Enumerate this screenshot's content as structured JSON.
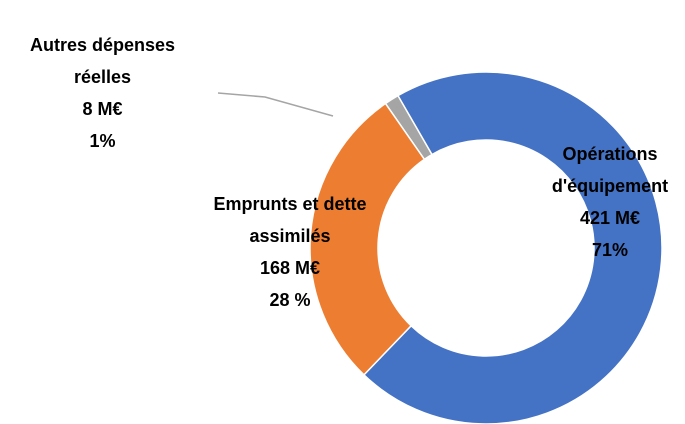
{
  "chart_data": {
    "type": "donut",
    "categories": [
      "Opérations d'équipement",
      "Emprunts et dette assimilés",
      "Autres dépenses réelles"
    ],
    "values": [
      421,
      168,
      8
    ],
    "value_labels": [
      "421 M€",
      "168 M€",
      "8 M€"
    ],
    "percents": [
      71,
      28,
      1
    ],
    "percent_labels": [
      "71%",
      "28 %",
      "1%"
    ],
    "colors": [
      "#4472c4",
      "#ed7d31",
      "#a5a5a5"
    ]
  }
}
